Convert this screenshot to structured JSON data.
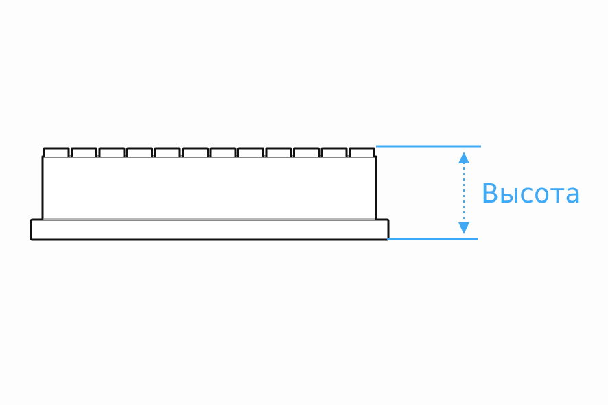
{
  "diagram": {
    "dimension_label": "Высота",
    "well_count": 12,
    "colors": {
      "outline": "#111111",
      "inner_line": "#b7b7b7",
      "dimension": "#3fa9f5",
      "background": "#fdfdfd"
    }
  }
}
